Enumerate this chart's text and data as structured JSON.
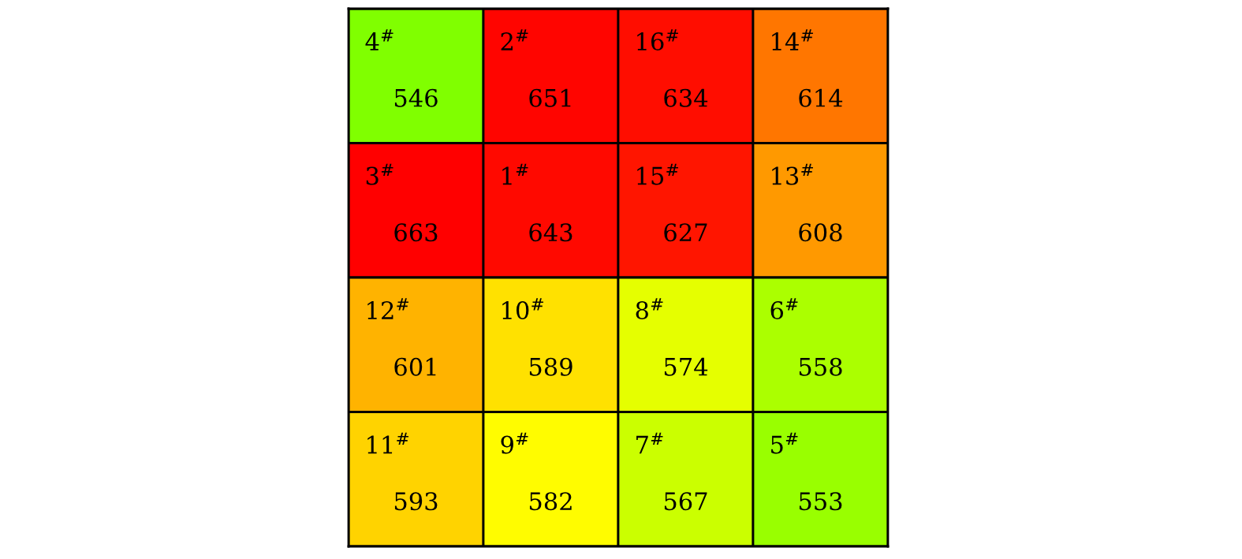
{
  "chart_data": {
    "type": "heatmap",
    "categories": [
      null,
      null,
      null,
      null
    ],
    "y_categories": [
      null,
      null,
      null,
      null
    ],
    "cells": [
      [
        546,
        651,
        634,
        614
      ],
      [
        663,
        643,
        627,
        608
      ],
      [
        601,
        589,
        574,
        558
      ],
      [
        593,
        582,
        567,
        553
      ]
    ],
    "data_labels": true,
    "annotations": [
      "4$^{#}$",
      "2$^{#}$",
      "16$^{#}$",
      "14$^{#}$",
      "3$^{#}$",
      "1$^{#}$",
      "15$^{#}$",
      "13$^{#}$",
      "12$^{#}$",
      "10$^{#}$",
      "8$^{#}$",
      "6$^{#}$",
      "11$^{#}$",
      "9$^{#}$",
      "7$^{#}$",
      "5$^{#}$"
    ]
  }
}
